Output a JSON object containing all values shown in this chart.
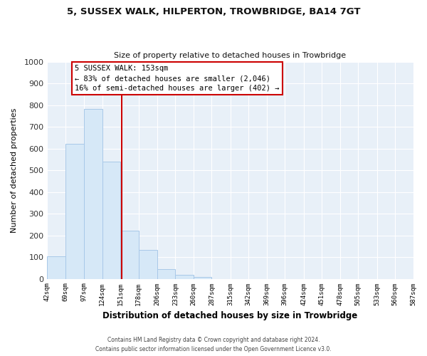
{
  "title": "5, SUSSEX WALK, HILPERTON, TROWBRIDGE, BA14 7GT",
  "subtitle": "Size of property relative to detached houses in Trowbridge",
  "xlabel": "Distribution of detached houses by size in Trowbridge",
  "ylabel": "Number of detached properties",
  "footnote1": "Contains HM Land Registry data © Crown copyright and database right 2024.",
  "footnote2": "Contains public sector information licensed under the Open Government Licence v3.0.",
  "bar_edges": [
    42,
    69,
    97,
    124,
    151,
    178,
    206,
    233,
    260,
    287,
    315,
    342,
    369,
    396,
    424,
    451,
    478,
    505,
    533,
    560,
    587
  ],
  "bar_heights": [
    103,
    622,
    783,
    540,
    220,
    133,
    45,
    18,
    8,
    0,
    0,
    0,
    0,
    0,
    0,
    0,
    0,
    0,
    0,
    0
  ],
  "bar_color": "#d6e8f7",
  "bar_edge_color": "#a8c8e8",
  "property_line_x": 153,
  "property_line_color": "#cc0000",
  "ylim": [
    0,
    1000
  ],
  "yticks": [
    0,
    100,
    200,
    300,
    400,
    500,
    600,
    700,
    800,
    900,
    1000
  ],
  "annotation_title": "5 SUSSEX WALK: 153sqm",
  "annotation_line1": "← 83% of detached houses are smaller (2,046)",
  "annotation_line2": "16% of semi-detached houses are larger (402) →",
  "annotation_box_color": "#cc0000",
  "fig_bg_color": "#ffffff",
  "plot_bg_color": "#e8f0f8",
  "grid_color": "#ffffff"
}
